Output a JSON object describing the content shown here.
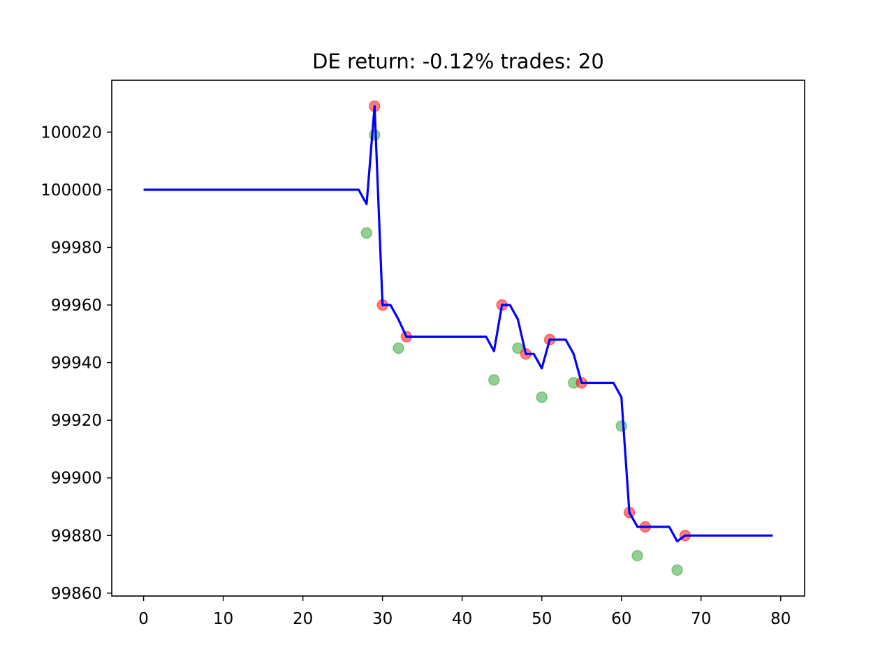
{
  "chart_data": {
    "type": "line",
    "title": "DE return: -0.12% trades: 20",
    "xlabel": "",
    "ylabel": "",
    "xlim": [
      -4,
      83
    ],
    "ylim": [
      99859,
      100038
    ],
    "x_ticks": [
      0,
      10,
      20,
      30,
      40,
      50,
      60,
      70,
      80
    ],
    "y_ticks": [
      99860,
      99880,
      99900,
      99920,
      99940,
      99960,
      99980,
      100000,
      100020
    ],
    "grid": false,
    "legend": "none",
    "series": [
      {
        "kind": "line",
        "color": "#0000ff",
        "x": [
          0,
          27,
          28,
          29,
          30,
          31,
          32,
          33,
          34,
          43,
          44,
          45,
          46,
          47,
          48,
          49,
          50,
          51,
          52,
          53,
          54,
          55,
          56,
          59,
          60,
          61,
          62,
          63,
          66,
          67,
          68,
          79
        ],
        "y": [
          100000,
          100000,
          99995,
          100029,
          99960,
          99960,
          99955,
          99949,
          99949,
          99949,
          99944,
          99960,
          99960,
          99955,
          99943,
          99943,
          99938,
          99948,
          99948,
          99948,
          99943,
          99933,
          99933,
          99933,
          99928,
          99888,
          99883,
          99883,
          99883,
          99878,
          99880,
          99880
        ]
      },
      {
        "kind": "scatter",
        "color": "#2ca02c",
        "x": [
          28,
          29,
          32,
          44,
          47,
          50,
          54,
          60,
          62,
          67
        ],
        "y": [
          99985,
          100019,
          99945,
          99934,
          99945,
          99928,
          99933,
          99918,
          99873,
          99868
        ]
      },
      {
        "kind": "scatter",
        "color": "#ff0000",
        "x": [
          29,
          30,
          33,
          45,
          48,
          51,
          55,
          61,
          63,
          68
        ],
        "y": [
          100029,
          99960,
          99949,
          99960,
          99943,
          99948,
          99933,
          99888,
          99883,
          99880
        ]
      }
    ]
  }
}
